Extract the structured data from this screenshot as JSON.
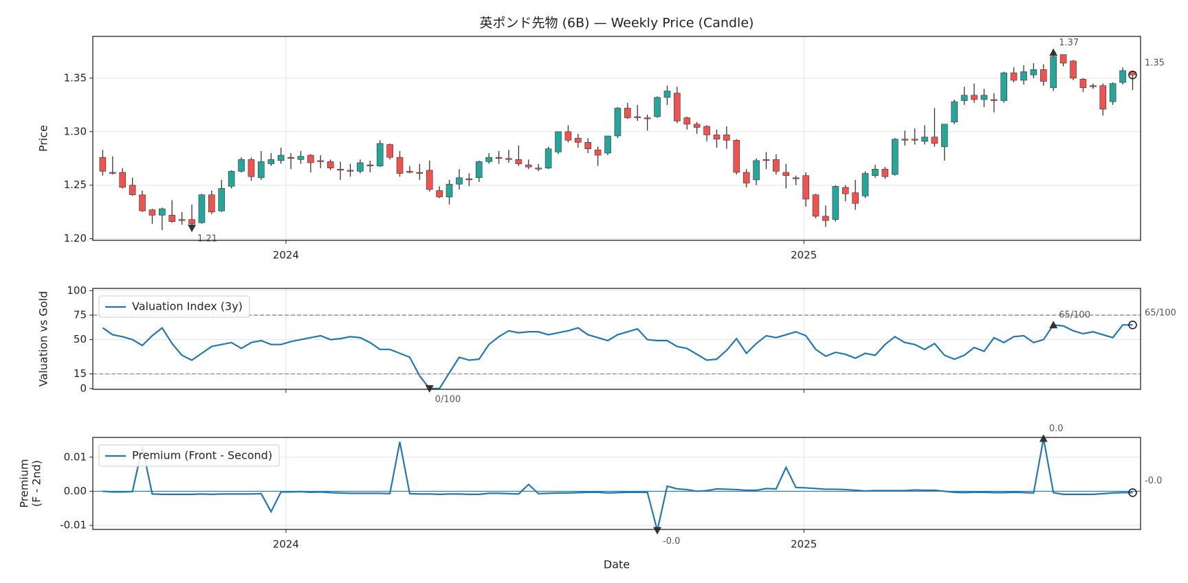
{
  "chart_data": [
    {
      "type": "candlestick",
      "title": "英ポンド先物 (6B) — Weekly Price (Candle)",
      "ylabel": "Price",
      "up_color": "#26a69a",
      "down_color": "#ef5350",
      "grid": true,
      "xlim": [
        -1,
        104.8
      ],
      "xticks": [
        {
          "value": 18.5,
          "label": "2024"
        },
        {
          "value": 70.8,
          "label": "2025"
        }
      ],
      "ylim": [
        1.1985,
        1.389
      ],
      "yticks": [
        {
          "value": 1.2,
          "label": "1.20"
        },
        1.25,
        {
          "value": 1.3,
          "label": "1.30"
        },
        1.35
      ],
      "open": [
        1.276,
        1.262,
        1.262,
        1.25,
        1.241,
        1.227,
        1.222,
        1.222,
        1.218,
        1.218,
        1.215,
        1.241,
        1.226,
        1.249,
        1.263,
        1.274,
        1.257,
        1.27,
        1.273,
        1.276,
        1.274,
        1.278,
        1.273,
        1.272,
        1.265,
        1.264,
        1.263,
        1.269,
        1.268,
        1.288,
        1.276,
        1.263,
        1.262,
        1.264,
        1.245,
        1.239,
        1.251,
        1.256,
        1.257,
        1.272,
        1.276,
        1.275,
        1.274,
        1.269,
        1.266,
        1.266,
        1.281,
        1.3,
        1.294,
        1.29,
        1.283,
        1.28,
        1.296,
        1.322,
        1.314,
        1.313,
        1.314,
        1.332,
        1.336,
        1.313,
        1.307,
        1.305,
        1.297,
        1.297,
        1.292,
        1.262,
        1.255,
        1.274,
        1.274,
        1.262,
        1.257,
        1.259,
        1.241,
        1.221,
        1.218,
        1.248,
        1.243,
        1.24,
        1.259,
        1.265,
        1.26,
        1.293,
        1.293,
        1.291,
        1.295,
        1.286,
        1.309,
        1.329,
        1.334,
        1.33,
        1.33,
        1.329,
        1.355,
        1.348,
        1.353,
        1.358,
        1.341,
        1.372,
        1.366,
        1.349,
        1.343,
        1.343,
        1.328,
        1.346,
        1.356
      ],
      "high": [
        1.283,
        1.277,
        1.266,
        1.257,
        1.245,
        1.228,
        1.229,
        1.236,
        1.225,
        1.232,
        1.242,
        1.245,
        1.255,
        1.264,
        1.276,
        1.276,
        1.282,
        1.28,
        1.285,
        1.28,
        1.282,
        1.279,
        1.278,
        1.274,
        1.272,
        1.27,
        1.274,
        1.273,
        1.292,
        1.289,
        1.282,
        1.268,
        1.27,
        1.273,
        1.249,
        1.255,
        1.265,
        1.261,
        1.273,
        1.28,
        1.282,
        1.283,
        1.287,
        1.274,
        1.27,
        1.286,
        1.3,
        1.306,
        1.298,
        1.294,
        1.286,
        1.296,
        1.323,
        1.327,
        1.325,
        1.316,
        1.333,
        1.343,
        1.342,
        1.314,
        1.309,
        1.306,
        1.302,
        1.305,
        1.293,
        1.265,
        1.275,
        1.281,
        1.279,
        1.27,
        1.259,
        1.262,
        1.242,
        1.231,
        1.25,
        1.25,
        1.255,
        1.263,
        1.269,
        1.267,
        1.294,
        1.301,
        1.303,
        1.306,
        1.322,
        1.307,
        1.33,
        1.342,
        1.345,
        1.34,
        1.336,
        1.356,
        1.36,
        1.362,
        1.364,
        1.363,
        1.374,
        1.371,
        1.367,
        1.35,
        1.345,
        1.345,
        1.346,
        1.36,
        1.357
      ],
      "low": [
        1.259,
        1.26,
        1.247,
        1.24,
        1.225,
        1.214,
        1.208,
        1.215,
        1.213,
        1.21,
        1.214,
        1.223,
        1.225,
        1.247,
        1.262,
        1.254,
        1.255,
        1.268,
        1.27,
        1.265,
        1.27,
        1.262,
        1.266,
        1.264,
        1.255,
        1.258,
        1.261,
        1.262,
        1.267,
        1.274,
        1.258,
        1.261,
        1.255,
        1.244,
        1.238,
        1.232,
        1.246,
        1.249,
        1.253,
        1.27,
        1.27,
        1.271,
        1.268,
        1.265,
        1.263,
        1.265,
        1.279,
        1.29,
        1.285,
        1.28,
        1.268,
        1.278,
        1.294,
        1.312,
        1.31,
        1.301,
        1.313,
        1.325,
        1.308,
        1.302,
        1.298,
        1.291,
        1.285,
        1.284,
        1.26,
        1.248,
        1.25,
        1.265,
        1.26,
        1.247,
        1.25,
        1.23,
        1.219,
        1.211,
        1.216,
        1.235,
        1.227,
        1.238,
        1.257,
        1.256,
        1.259,
        1.287,
        1.288,
        1.288,
        1.286,
        1.273,
        1.307,
        1.325,
        1.327,
        1.323,
        1.318,
        1.327,
        1.346,
        1.344,
        1.35,
        1.343,
        1.338,
        1.361,
        1.348,
        1.337,
        1.34,
        1.315,
        1.325,
        1.344,
        1.339
      ],
      "close": [
        1.263,
        1.261,
        1.248,
        1.241,
        1.226,
        1.222,
        1.228,
        1.216,
        1.217,
        1.214,
        1.241,
        1.225,
        1.247,
        1.263,
        1.274,
        1.258,
        1.272,
        1.274,
        1.278,
        1.275,
        1.277,
        1.271,
        1.272,
        1.266,
        1.264,
        1.263,
        1.271,
        1.268,
        1.289,
        1.276,
        1.261,
        1.262,
        1.261,
        1.246,
        1.239,
        1.251,
        1.257,
        1.255,
        1.272,
        1.276,
        1.275,
        1.274,
        1.27,
        1.267,
        1.265,
        1.284,
        1.3,
        1.292,
        1.29,
        1.284,
        1.278,
        1.296,
        1.322,
        1.313,
        1.313,
        1.312,
        1.332,
        1.338,
        1.31,
        1.307,
        1.304,
        1.297,
        1.293,
        1.292,
        1.262,
        1.252,
        1.273,
        1.273,
        1.263,
        1.259,
        1.256,
        1.237,
        1.221,
        1.217,
        1.249,
        1.242,
        1.233,
        1.261,
        1.265,
        1.258,
        1.293,
        1.292,
        1.292,
        1.295,
        1.289,
        1.307,
        1.328,
        1.334,
        1.33,
        1.334,
        1.329,
        1.355,
        1.348,
        1.356,
        1.358,
        1.347,
        1.37,
        1.364,
        1.35,
        1.341,
        1.342,
        1.321,
        1.345,
        1.357,
        1.353
      ],
      "annotations": [
        {
          "label": "1.21",
          "index": 9,
          "field": "low",
          "marker": "down"
        },
        {
          "label": "1.37",
          "index": 96,
          "field": "high",
          "marker": "up"
        },
        {
          "label": "1.35",
          "index": 104,
          "field": "close",
          "marker": "circle"
        }
      ]
    },
    {
      "type": "line",
      "ylabel": "Valuation vs Gold",
      "grid": true,
      "xlim": [
        -1,
        104.8
      ],
      "xticks": [
        18.5,
        70.8
      ],
      "ylim": [
        -0.8,
        102.3
      ],
      "yticks": [
        0,
        15,
        50,
        75,
        100
      ],
      "hlines": [
        75,
        15
      ],
      "hline_style": "dashed",
      "series": [
        {
          "name": "Valuation Index (3y)",
          "color": "#1f77b4",
          "values": [
            62,
            55,
            53,
            50,
            44,
            54,
            62,
            46,
            34,
            29,
            36,
            43,
            45,
            47,
            41,
            47,
            49,
            45,
            45,
            48,
            50,
            52,
            54,
            50,
            51,
            53,
            52,
            47,
            40,
            40,
            36,
            32,
            13,
            0,
            0,
            16,
            32,
            29,
            30,
            45,
            53,
            59,
            57,
            58,
            58,
            55,
            57,
            59,
            62,
            55,
            52,
            49,
            55,
            58,
            61,
            50,
            49,
            49,
            43,
            41,
            35,
            29,
            30,
            39,
            51,
            36,
            46,
            54,
            52,
            55,
            58,
            54,
            40,
            33,
            37,
            35,
            31,
            36,
            34,
            45,
            53,
            47,
            45,
            40,
            46,
            34,
            30,
            34,
            42,
            38,
            52,
            47,
            53,
            54,
            47,
            50,
            65,
            64,
            59,
            56,
            58,
            55,
            52,
            65,
            65
          ]
        }
      ],
      "annotations": [
        {
          "label": "0/100",
          "index": 33,
          "marker": "down"
        },
        {
          "label": "65/100",
          "index": 96,
          "marker": "up"
        },
        {
          "label": "65/100",
          "index": 104,
          "marker": "circle"
        }
      ]
    },
    {
      "type": "line",
      "ylabel": [
        "Premium",
        "(F - 2nd)"
      ],
      "xlabel": "Date",
      "grid": true,
      "xlim": [
        -1,
        104.8
      ],
      "xticks": [
        {
          "value": 18.5,
          "label": "2024"
        },
        {
          "value": 70.8,
          "label": "2025"
        }
      ],
      "ylim": [
        -0.0112,
        0.0158
      ],
      "yticks": [
        {
          "value": -0.01,
          "label": "-0.01"
        },
        {
          "value": 0,
          "label": "0.00"
        },
        {
          "value": 0.01,
          "label": "0.01"
        }
      ],
      "hlines": [
        0
      ],
      "hline_style": "solid",
      "series": [
        {
          "name": "Premium (Front - Second)",
          "color": "#1f77b4",
          "values": [
            0,
            -0.0002,
            -0.0002,
            -0.0001,
            0.013,
            -0.0008,
            -0.0009,
            -0.0009,
            -0.0009,
            -0.0009,
            -0.0008,
            -0.0009,
            -0.0008,
            -0.0008,
            -0.0008,
            -0.0008,
            -0.0007,
            -0.006,
            -0.0002,
            -0.0002,
            -0.0001,
            -0.0003,
            -0.0002,
            -0.0004,
            -0.0005,
            -0.0006,
            -0.0006,
            -0.0006,
            -0.0006,
            -0.0007,
            0.0145,
            -0.0007,
            -0.0008,
            -0.0008,
            -0.0009,
            -0.0008,
            -0.0008,
            -0.0009,
            -0.0009,
            -0.0006,
            -0.0006,
            -0.0007,
            -0.0008,
            0.002,
            -0.0007,
            -0.0006,
            -0.0005,
            -0.0005,
            -0.0004,
            -0.0003,
            -0.0003,
            -0.0005,
            -0.0004,
            -0.0003,
            -0.0003,
            -0.0003,
            -0.0115,
            0.0015,
            0.0007,
            0.0005,
            0,
            0.0002,
            0.0007,
            0.0006,
            0.0005,
            0.0003,
            0.0003,
            0.0008,
            0.0007,
            0.007,
            0.0011,
            0.001,
            0.0008,
            0.0006,
            0.0006,
            0.0005,
            0.0003,
            0.0001,
            0.0002,
            0.0002,
            0.0002,
            0.0002,
            0.0004,
            0.0003,
            0.0003,
            0,
            -0.0003,
            -0.0004,
            -0.0003,
            -0.0003,
            -0.0004,
            -0.0004,
            -0.0003,
            -0.0004,
            -0.0005,
            0.0155,
            -0.0004,
            -0.0009,
            -0.0009,
            -0.0009,
            -0.0009,
            -0.0007,
            -0.0005,
            -0.0004,
            -0.0004
          ]
        }
      ],
      "annotations": [
        {
          "label": "0.0",
          "index": 95,
          "marker": "up"
        },
        {
          "label": "-0.0",
          "index": 56,
          "marker": "down"
        },
        {
          "label": "-0.0",
          "index": 104,
          "marker": "circle"
        }
      ]
    }
  ]
}
